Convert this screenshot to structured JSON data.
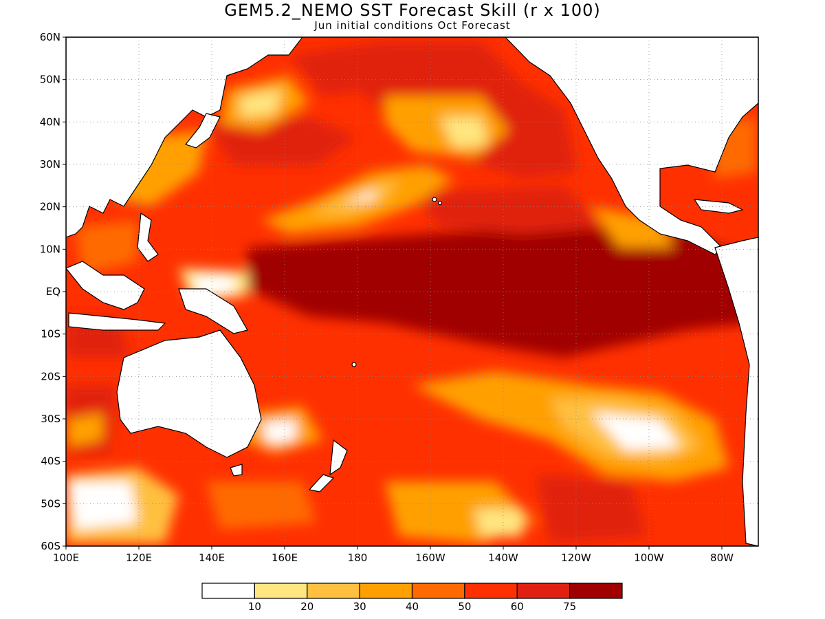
{
  "map": {
    "title": "GEM5.2_NEMO SST Forecast Skill (r x 100)",
    "subtitle": "Jun initial conditions  Oct Forecast",
    "lat_labels": [
      "60N",
      "50N",
      "40N",
      "30N",
      "20N",
      "10N",
      "EQ",
      "10S",
      "20S",
      "30S",
      "40S",
      "50S",
      "60S"
    ],
    "lon_labels": [
      "100E",
      "120E",
      "140E",
      "160E",
      "180",
      "160W",
      "140W",
      "120W",
      "100W",
      "80W"
    ],
    "extent": {
      "lon_min": 100,
      "lon_max": 290,
      "lat_min": -60,
      "lat_max": 60
    },
    "colorbar": {
      "colors": [
        "#ffffff",
        "#ffe680",
        "#ffc040",
        "#ffa000",
        "#ff6a00",
        "#ff3000",
        "#e02010",
        "#a00000"
      ],
      "labels": [
        "10",
        "20",
        "30",
        "40",
        "50",
        "60",
        "75"
      ]
    }
  }
}
